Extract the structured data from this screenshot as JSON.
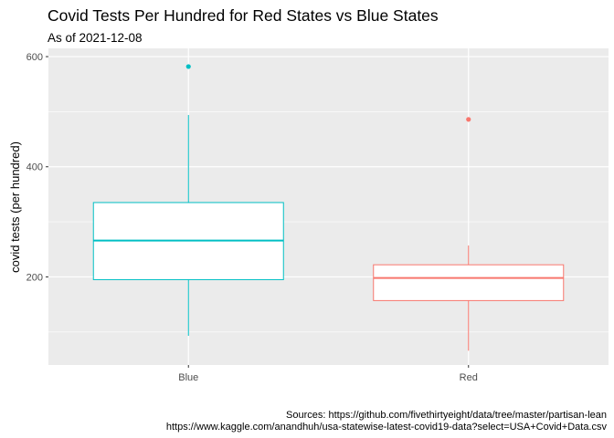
{
  "chart_data": {
    "type": "boxplot",
    "title": "Covid Tests Per Hundred for Red States vs Blue States",
    "subtitle": "As of 2021-12-08",
    "xlabel": "",
    "ylabel": "covid tests (per hundred)",
    "ylim": [
      40,
      615
    ],
    "yticks": [
      200,
      400,
      600
    ],
    "grid": true,
    "legend": "none",
    "categories": [
      "Blue",
      "Red"
    ],
    "boxes": [
      {
        "category": "Blue",
        "color": "#00BFC4",
        "whisker_low": 93,
        "q1": 195,
        "median": 266,
        "q3": 335,
        "whisker_high": 494,
        "outliers": [
          582
        ]
      },
      {
        "category": "Red",
        "color": "#F8766D",
        "whisker_low": 66,
        "q1": 157,
        "median": 198,
        "q3": 222,
        "whisker_high": 257,
        "outliers": [
          486
        ]
      }
    ],
    "caption": [
      "Sources: https://github.com/fivethirtyeight/data/tree/master/partisan-lean",
      "https://www.kaggle.com/anandhuh/usa-statewise-latest-covid19-data?select=USA+Covid+Data.csv"
    ]
  },
  "colors": {
    "panel_background": "#EBEBEB",
    "grid_major": "#FFFFFF",
    "box_fill": "#FFFFFF"
  }
}
